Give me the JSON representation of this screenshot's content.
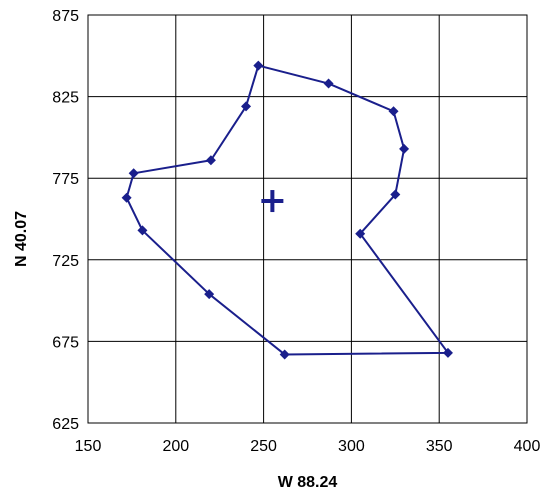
{
  "chart_data": {
    "type": "scatter",
    "title": "",
    "xlabel": "W 88.24",
    "ylabel": "N 40.07",
    "xlim": [
      150,
      400
    ],
    "ylim": [
      625,
      875
    ],
    "xticks": [
      150,
      200,
      250,
      300,
      350,
      400
    ],
    "yticks": [
      625,
      675,
      725,
      775,
      825,
      875
    ],
    "grid": true,
    "legend": "none",
    "series": [
      {
        "style": "line-with-diamond-markers, closed polygon",
        "color": "#1a1f8c",
        "points": [
          [
            247,
            844
          ],
          [
            287,
            833
          ],
          [
            324,
            816
          ],
          [
            330,
            793
          ],
          [
            325,
            765
          ],
          [
            305,
            741
          ],
          [
            355,
            668
          ],
          [
            262,
            667
          ],
          [
            219,
            704
          ],
          [
            181,
            743
          ],
          [
            172,
            763
          ],
          [
            176,
            778
          ],
          [
            220,
            786
          ],
          [
            240,
            819
          ],
          [
            247,
            844
          ]
        ]
      }
    ],
    "annotations": [
      {
        "symbol": "+",
        "x": 255,
        "y": 761,
        "color": "#1a1f8c"
      }
    ]
  }
}
